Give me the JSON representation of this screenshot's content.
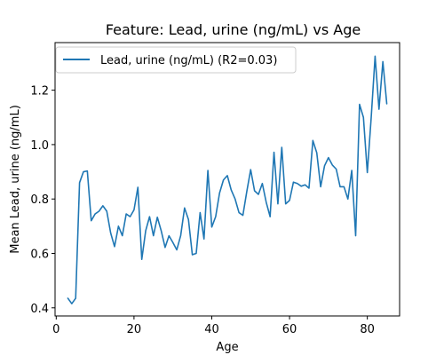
{
  "chart_data": {
    "type": "line",
    "title": "Feature: Lead, urine (ng/mL) vs Age",
    "xlabel": "Age",
    "ylabel": "Mean Lead, urine (ng/mL)",
    "xlim": [
      -0.3,
      88.3
    ],
    "ylim": [
      0.37,
      1.375
    ],
    "xticks": [
      0,
      20,
      40,
      60,
      80
    ],
    "yticks": [
      0.4,
      0.6,
      0.8,
      1.0,
      1.2
    ],
    "ytick_labels": [
      "0.4",
      "0.6",
      "0.8",
      "1.0",
      "1.2"
    ],
    "grid": false,
    "legend_position": "top-left",
    "series": [
      {
        "name": "Lead, urine (ng/mL) (R2=0.03)",
        "color": "#1f77b4",
        "x": [
          3,
          4,
          5,
          6,
          7,
          8,
          9,
          10,
          11,
          12,
          13,
          14,
          15,
          16,
          17,
          18,
          19,
          20,
          21,
          22,
          23,
          24,
          25,
          26,
          27,
          28,
          29,
          30,
          31,
          32,
          33,
          34,
          35,
          36,
          37,
          38,
          39,
          40,
          41,
          42,
          43,
          44,
          45,
          46,
          47,
          48,
          49,
          50,
          51,
          52,
          53,
          54,
          55,
          56,
          57,
          58,
          59,
          60,
          61,
          62,
          63,
          64,
          65,
          66,
          67,
          68,
          69,
          70,
          71,
          72,
          73,
          74,
          75,
          76,
          77,
          78,
          79,
          80,
          81,
          82,
          83,
          84,
          85
        ],
        "y": [
          0.435,
          0.415,
          0.435,
          0.86,
          0.9,
          0.903,
          0.72,
          0.745,
          0.755,
          0.775,
          0.755,
          0.675,
          0.625,
          0.7,
          0.665,
          0.745,
          0.735,
          0.76,
          0.843,
          0.578,
          0.683,
          0.735,
          0.665,
          0.733,
          0.683,
          0.622,
          0.665,
          0.64,
          0.613,
          0.665,
          0.767,
          0.725,
          0.595,
          0.6,
          0.75,
          0.653,
          0.905,
          0.697,
          0.735,
          0.822,
          0.87,
          0.886,
          0.833,
          0.8,
          0.75,
          0.74,
          0.827,
          0.908,
          0.83,
          0.817,
          0.857,
          0.788,
          0.735,
          0.972,
          0.782,
          0.99,
          0.782,
          0.795,
          0.862,
          0.857,
          0.847,
          0.852,
          0.84,
          1.015,
          0.97,
          0.845,
          0.922,
          0.952,
          0.925,
          0.91,
          0.845,
          0.845,
          0.8,
          0.905,
          0.665,
          1.148,
          1.1,
          0.897,
          1.1,
          1.325,
          1.13,
          1.305,
          1.15
        ]
      }
    ]
  }
}
